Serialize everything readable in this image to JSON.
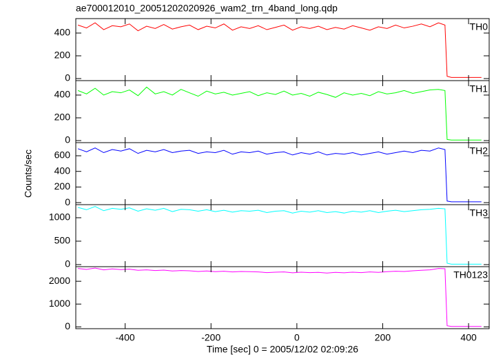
{
  "chart_data": {
    "type": "line",
    "title": "ae700012010_20051202020926_wam2_trn_4band_long.qdp",
    "xlabel": "Time [sec] 0 = 2005/12/02 02:09:26",
    "ylabel": "Counts/sec",
    "xlim": [
      -515,
      448
    ],
    "xticks": [
      -400,
      -200,
      0,
      200,
      400
    ],
    "x": [
      -510,
      -490,
      -470,
      -450,
      -430,
      -410,
      -390,
      -370,
      -350,
      -330,
      -310,
      -290,
      -270,
      -250,
      -230,
      -210,
      -190,
      -170,
      -150,
      -130,
      -110,
      -90,
      -70,
      -50,
      -30,
      -10,
      10,
      30,
      50,
      70,
      90,
      110,
      130,
      150,
      170,
      190,
      210,
      230,
      250,
      270,
      290,
      310,
      330,
      345,
      350,
      360,
      390,
      430
    ],
    "series": [
      {
        "name": "TH0",
        "color": "#ff0000",
        "ylim": [
          -18,
          527
        ],
        "yticks": [
          0,
          200,
          400
        ],
        "values": [
          470,
          445,
          490,
          430,
          465,
          455,
          480,
          420,
          460,
          440,
          475,
          435,
          455,
          470,
          430,
          460,
          445,
          480,
          425,
          455,
          440,
          465,
          430,
          450,
          470,
          425,
          455,
          440,
          460,
          430,
          450,
          435,
          465,
          445,
          425,
          455,
          440,
          470,
          445,
          460,
          480,
          455,
          490,
          470,
          20,
          10,
          10,
          10
        ]
      },
      {
        "name": "TH1",
        "color": "#00ff00",
        "ylim": [
          -18,
          527
        ],
        "yticks": [
          0,
          200,
          400
        ],
        "values": [
          440,
          410,
          460,
          400,
          430,
          420,
          445,
          395,
          470,
          410,
          430,
          400,
          450,
          420,
          390,
          435,
          410,
          425,
          400,
          415,
          430,
          395,
          420,
          405,
          435,
          400,
          415,
          390,
          425,
          405,
          380,
          420,
          400,
          415,
          395,
          430,
          410,
          420,
          440,
          415,
          430,
          445,
          450,
          440,
          10,
          5,
          5,
          5
        ]
      },
      {
        "name": "TH2",
        "color": "#0000ff",
        "ylim": [
          -26,
          768
        ],
        "yticks": [
          0,
          200,
          400,
          600
        ],
        "values": [
          690,
          650,
          700,
          640,
          680,
          660,
          690,
          630,
          670,
          650,
          680,
          640,
          660,
          670,
          630,
          650,
          640,
          670,
          620,
          650,
          640,
          660,
          620,
          640,
          650,
          610,
          640,
          620,
          650,
          610,
          630,
          620,
          640,
          610,
          630,
          650,
          620,
          640,
          660,
          640,
          670,
          660,
          700,
          680,
          20,
          10,
          10,
          10
        ]
      },
      {
        "name": "TH3",
        "color": "#00ffff",
        "ylim": [
          -44,
          1279
        ],
        "yticks": [
          0,
          500,
          1000
        ],
        "values": [
          1220,
          1170,
          1240,
          1150,
          1200,
          1180,
          1210,
          1140,
          1190,
          1160,
          1200,
          1130,
          1180,
          1170,
          1140,
          1170,
          1130,
          1160,
          1120,
          1150,
          1140,
          1160,
          1110,
          1140,
          1150,
          1100,
          1140,
          1120,
          1150,
          1110,
          1130,
          1100,
          1140,
          1120,
          1150,
          1110,
          1140,
          1160,
          1130,
          1150,
          1170,
          1180,
          1200,
          1190,
          30,
          10,
          10,
          10
        ]
      },
      {
        "name": "TH0123",
        "color": "#ff00ff",
        "ylim": [
          -80,
          2640
        ],
        "yticks": [
          0,
          1000,
          2000
        ],
        "values": [
          2560,
          2520,
          2580,
          2500,
          2540,
          2510,
          2530,
          2480,
          2500,
          2470,
          2490,
          2450,
          2470,
          2460,
          2430,
          2450,
          2420,
          2440,
          2410,
          2430,
          2420,
          2410,
          2380,
          2400,
          2410,
          2370,
          2400,
          2380,
          2390,
          2360,
          2390,
          2370,
          2400,
          2380,
          2410,
          2390,
          2420,
          2440,
          2430,
          2460,
          2480,
          2500,
          2560,
          2550,
          50,
          20,
          20,
          20
        ]
      }
    ]
  }
}
